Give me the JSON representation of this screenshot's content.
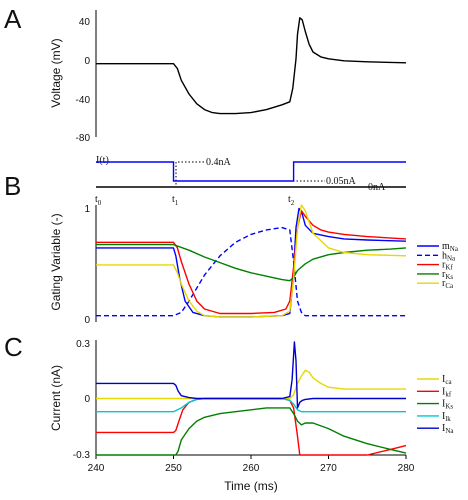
{
  "chart_data": [
    {
      "type": "line",
      "panel_label": "A",
      "ylabel": "Voltage (mV)",
      "ylim": [
        -80,
        50
      ],
      "yticks": [
        "40",
        "0",
        "-40",
        "-80"
      ],
      "xlim": [
        240,
        280
      ],
      "series": [
        {
          "color": "#000000",
          "x": [
            240,
            250,
            250.5,
            251,
            252,
            253,
            254,
            255,
            256,
            258,
            260,
            262,
            264,
            265,
            265.4,
            265.8,
            266.0,
            266.3,
            266.6,
            267.0,
            267.5,
            268,
            269,
            270,
            272,
            275,
            280
          ],
          "y": [
            -5,
            -5,
            -10,
            -22,
            -36,
            -46,
            -52,
            -55,
            -56,
            -56,
            -55,
            -52,
            -47,
            -44,
            -30,
            0,
            25,
            42,
            40,
            28,
            15,
            7,
            2,
            0,
            -2,
            -3,
            -4
          ]
        }
      ]
    },
    {
      "type": "line",
      "panel_label": "I(t)",
      "annotations": [
        "0.4nA",
        "0.05nA",
        "0nA"
      ],
      "tick_labels": [
        "t",
        "t",
        "t"
      ],
      "tick_subscripts": [
        "0",
        "1",
        "2"
      ],
      "levels_nA": [
        0.4,
        0.05,
        0
      ],
      "series": [
        {
          "color": "#0000ff",
          "x": [
            240,
            250,
            250,
            265.5,
            265.5,
            280
          ],
          "y": [
            0.4,
            0.4,
            0.05,
            0.05,
            0.4,
            0.4
          ]
        }
      ]
    },
    {
      "type": "line",
      "panel_label": "B",
      "ylabel": "Gating Variable (-)",
      "ylim": [
        0,
        1
      ],
      "yticks": [
        "1",
        "0"
      ],
      "xlim": [
        240,
        280
      ],
      "legend_position": "right",
      "series": [
        {
          "name": "m",
          "sub": "Na",
          "color": "#0000ff",
          "dash": "",
          "x": [
            240,
            250,
            250.3,
            250.8,
            251.5,
            252.5,
            254,
            256,
            260,
            264,
            265,
            265.4,
            265.8,
            266.2,
            266.6,
            267,
            268,
            270,
            272,
            275,
            280
          ],
          "y": [
            0.62,
            0.62,
            0.55,
            0.35,
            0.15,
            0.05,
            0.02,
            0.01,
            0.01,
            0.02,
            0.04,
            0.3,
            0.8,
            0.97,
            0.92,
            0.82,
            0.75,
            0.72,
            0.7,
            0.69,
            0.68
          ]
        },
        {
          "name": "h",
          "sub": "Na",
          "color": "#0000ff",
          "dash": "5,3",
          "x": [
            240,
            250,
            251,
            252,
            254,
            256,
            258,
            260,
            262,
            264,
            265,
            265.5,
            266,
            266.5,
            267,
            268,
            270,
            280
          ],
          "y": [
            0.02,
            0.02,
            0.05,
            0.15,
            0.38,
            0.55,
            0.67,
            0.74,
            0.78,
            0.8,
            0.78,
            0.5,
            0.15,
            0.05,
            0.02,
            0.02,
            0.02,
            0.02
          ]
        },
        {
          "name": "r",
          "sub": "Kf",
          "color": "#ff0000",
          "dash": "",
          "x": [
            240,
            250,
            250.5,
            251,
            252,
            253,
            254,
            256,
            260,
            263,
            264.5,
            265,
            265.5,
            266,
            266.5,
            267,
            268,
            269,
            270,
            272,
            275,
            280
          ],
          "y": [
            0.67,
            0.67,
            0.62,
            0.5,
            0.3,
            0.15,
            0.08,
            0.04,
            0.04,
            0.05,
            0.08,
            0.15,
            0.45,
            0.8,
            0.95,
            0.9,
            0.82,
            0.78,
            0.76,
            0.74,
            0.72,
            0.7
          ]
        },
        {
          "name": "r",
          "sub": "Ks",
          "color": "#008000",
          "dash": "",
          "x": [
            240,
            250,
            252,
            254,
            256,
            258,
            260,
            262,
            264,
            265,
            265.5,
            266,
            267,
            268,
            270,
            272,
            275,
            278,
            280
          ],
          "y": [
            0.65,
            0.65,
            0.6,
            0.54,
            0.49,
            0.44,
            0.4,
            0.37,
            0.34,
            0.33,
            0.36,
            0.42,
            0.48,
            0.52,
            0.56,
            0.58,
            0.6,
            0.61,
            0.62
          ]
        },
        {
          "name": "r",
          "sub": "Ca",
          "color": "#e6d800",
          "dash": "",
          "x": [
            240,
            250,
            250.5,
            251,
            252,
            253,
            254,
            256,
            260,
            264,
            265,
            265.5,
            266,
            266.5,
            267,
            267.5,
            268,
            270,
            272,
            275,
            280
          ],
          "y": [
            0.47,
            0.47,
            0.4,
            0.3,
            0.15,
            0.06,
            0.02,
            0.01,
            0.01,
            0.02,
            0.06,
            0.35,
            0.8,
            1.0,
            0.95,
            0.85,
            0.75,
            0.62,
            0.58,
            0.56,
            0.55
          ]
        }
      ]
    },
    {
      "type": "line",
      "panel_label": "C",
      "ylabel": "Current (nA)",
      "xlabel": "Time (ms)",
      "ylim": [
        -0.3,
        0.3
      ],
      "yticks": [
        "0.3",
        "0",
        "-0.3"
      ],
      "xlim": [
        240,
        280
      ],
      "xticks": [
        "240",
        "250",
        "260",
        "270",
        "280"
      ],
      "legend_position": "right",
      "series": [
        {
          "name": "I",
          "sub": "ca",
          "color": "#e6d800",
          "x": [
            240,
            250,
            251,
            252,
            254,
            260,
            264,
            265,
            265.5,
            266,
            266.5,
            267,
            267.5,
            268,
            269,
            270,
            272,
            275,
            280
          ],
          "y": [
            0.0,
            0.0,
            0.0,
            0.0,
            0.0,
            0.0,
            0.0,
            0.0,
            0.02,
            0.08,
            0.12,
            0.15,
            0.14,
            0.11,
            0.08,
            0.06,
            0.05,
            0.05,
            0.05
          ]
        },
        {
          "name": "I",
          "sub": "kf",
          "color": "#ff0000",
          "x": [
            240,
            250,
            250.3,
            250.7,
            251.2,
            252,
            253,
            254,
            256,
            260,
            264,
            265,
            265.5,
            266,
            266.3,
            270,
            272,
            275,
            278,
            280
          ],
          "y": [
            -0.18,
            -0.18,
            -0.17,
            -0.12,
            -0.06,
            -0.02,
            -0.005,
            0.0,
            0.0,
            0.0,
            0.0,
            -0.01,
            -0.05,
            -0.2,
            -0.35,
            -0.35,
            -0.33,
            -0.3,
            -0.27,
            -0.25
          ]
        },
        {
          "name": "I",
          "sub": "Ks",
          "color": "#008000",
          "x": [
            240,
            250,
            250.3,
            250.6,
            251,
            252,
            253,
            254,
            256,
            258,
            260,
            262,
            264,
            265,
            265.5,
            266,
            266.5,
            267,
            268,
            270,
            272,
            275,
            278,
            280
          ],
          "y": [
            -0.3,
            -0.3,
            -0.32,
            -0.28,
            -0.22,
            -0.16,
            -0.12,
            -0.1,
            -0.08,
            -0.07,
            -0.06,
            -0.05,
            -0.05,
            -0.05,
            -0.08,
            -0.12,
            -0.14,
            -0.13,
            -0.13,
            -0.16,
            -0.2,
            -0.24,
            -0.27,
            -0.29
          ]
        },
        {
          "name": "I",
          "sub": "lk",
          "color": "#00c8d2",
          "x": [
            240,
            250,
            251,
            252,
            253,
            254,
            256,
            260,
            264,
            265,
            265.5,
            266,
            266.5,
            267,
            268,
            270,
            272,
            275,
            280
          ],
          "y": [
            -0.07,
            -0.07,
            -0.05,
            -0.02,
            -0.005,
            0.0,
            0.0,
            0.0,
            0.0,
            -0.01,
            -0.03,
            -0.06,
            -0.07,
            -0.07,
            -0.07,
            -0.07,
            -0.07,
            -0.07,
            -0.07
          ]
        },
        {
          "name": "I",
          "sub": "Na",
          "color": "#0000cc",
          "x": [
            240,
            250,
            250.3,
            250.6,
            251,
            252,
            253,
            254,
            256,
            260,
            264,
            265,
            265.3,
            265.6,
            265.8,
            266.0,
            266.3,
            266.6,
            267,
            268,
            270,
            275,
            280
          ],
          "y": [
            0.08,
            0.08,
            0.07,
            0.04,
            0.015,
            0.005,
            0.0,
            0.0,
            0.0,
            0.0,
            0.0,
            0.01,
            0.1,
            0.4,
            0.2,
            -0.05,
            -0.02,
            -0.01,
            -0.005,
            0.0,
            0.0,
            0.0,
            0.0
          ]
        }
      ]
    }
  ]
}
